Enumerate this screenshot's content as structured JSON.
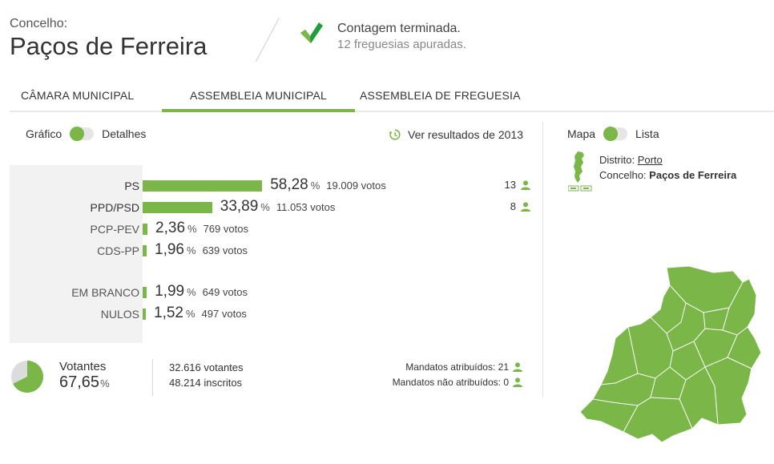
{
  "header": {
    "label": "Concelho:",
    "title": "Paços de Ferreira",
    "status_line1": "Contagem terminada.",
    "status_line2": "12 freguesias apuradas."
  },
  "tabs": [
    {
      "label": "CÂMARA MUNICIPAL",
      "active": false
    },
    {
      "label": "ASSEMBLEIA MUNICIPAL",
      "active": true
    },
    {
      "label": "ASSEMBLEIA DE FREGUESIA",
      "active": false
    }
  ],
  "view_toggle": {
    "left": "Gráfico",
    "right": "Detalhes"
  },
  "map_toggle": {
    "left": "Mapa",
    "right": "Lista"
  },
  "previous_results": "Ver resultados de 2013",
  "results": [
    {
      "party": "PS",
      "pct": "58,28",
      "pct_sign": "%",
      "votes": "19.009 votos",
      "pct_value": 58.28,
      "seats": "13"
    },
    {
      "party": "PPD/PSD",
      "pct": "33,89",
      "pct_sign": "%",
      "votes": "11.053 votos",
      "pct_value": 33.89,
      "seats": "8"
    },
    {
      "party": "PCP-PEV",
      "pct": "2,36",
      "pct_sign": "%",
      "votes": "769 votos",
      "pct_value": 2.36,
      "seats": ""
    },
    {
      "party": "CDS-PP",
      "pct": "1,96",
      "pct_sign": "%",
      "votes": "639 votos",
      "pct_value": 1.96,
      "seats": ""
    },
    {
      "party": "EM BRANCO",
      "pct": "1,99",
      "pct_sign": "%",
      "votes": "649 votos",
      "pct_value": 1.99,
      "seats": ""
    },
    {
      "party": "NULOS",
      "pct": "1,52",
      "pct_sign": "%",
      "votes": "497 votos",
      "pct_value": 1.52,
      "seats": ""
    }
  ],
  "turnout": {
    "label": "Votantes",
    "pct": "67,65",
    "pct_sign": "%",
    "pct_value": 67.65,
    "voters": "32.616 votantes",
    "registered": "48.214 inscritos"
  },
  "mandates": {
    "assigned": "Mandatos atribuídos: 21",
    "unassigned": "Mandatos não atribuídos: 0"
  },
  "location": {
    "district_label": "Distrito:",
    "district": "Porto",
    "council_label": "Concelho:",
    "council": "Paços de Ferreira"
  },
  "colors": {
    "accent": "#7ab648",
    "pie_empty": "#dcdcdc",
    "chart_bg": "#f2f2f2"
  },
  "icons": [
    "check-icon",
    "history-icon",
    "person-icon",
    "portugal-map-icon",
    "municipality-map"
  ]
}
